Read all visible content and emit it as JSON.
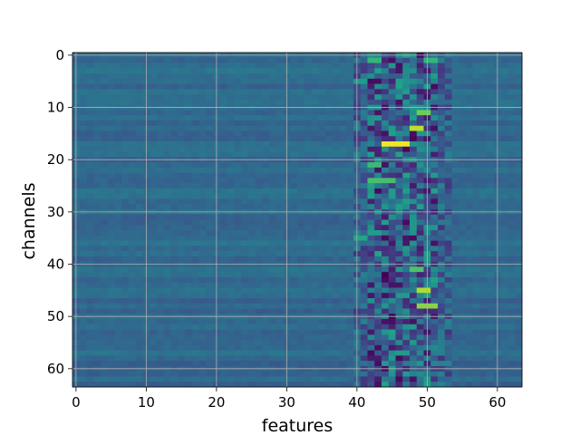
{
  "chart_data": {
    "type": "heatmap",
    "title": "",
    "xlabel": "features",
    "ylabel": "channels",
    "x_ticks": [
      0,
      10,
      20,
      30,
      40,
      50,
      60
    ],
    "y_ticks": [
      0,
      10,
      20,
      30,
      40,
      50,
      60
    ],
    "xlim": [
      -0.5,
      63.5
    ],
    "ylim": [
      63.5,
      -0.5
    ],
    "n_rows": 64,
    "n_cols": 64,
    "grid": true,
    "colormap": "viridis",
    "hot_spots": [
      {
        "row": 17,
        "col_start": 44,
        "col_end": 47,
        "value": 0.98
      },
      {
        "row": 14,
        "col_start": 48,
        "col_end": 49,
        "value": 0.9
      },
      {
        "row": 45,
        "col_start": 49,
        "col_end": 50,
        "value": 0.88
      },
      {
        "row": 48,
        "col_start": 49,
        "col_end": 51,
        "value": 0.82
      },
      {
        "row": 11,
        "col_start": 49,
        "col_end": 50,
        "value": 0.78
      },
      {
        "row": 41,
        "col_start": 48,
        "col_end": 49,
        "value": 0.72
      },
      {
        "row": 24,
        "col_start": 42,
        "col_end": 45,
        "value": 0.7
      },
      {
        "row": 21,
        "col_start": 42,
        "col_end": 43,
        "value": 0.68
      },
      {
        "row": 1,
        "col_start": 42,
        "col_end": 43,
        "value": 0.66
      },
      {
        "row": 1,
        "col_start": 50,
        "col_end": 51,
        "value": 0.66
      },
      {
        "row": 5,
        "col_start": 40,
        "col_end": 41,
        "value": 0.55
      },
      {
        "row": 35,
        "col_start": 40,
        "col_end": 41,
        "value": 0.58
      }
    ],
    "cold_spots": [
      {
        "row": 42,
        "col_start": 44,
        "col_end": 44,
        "value": 0.0
      },
      {
        "row": 50,
        "col_start": 45,
        "col_end": 45,
        "value": 0.0
      }
    ]
  }
}
